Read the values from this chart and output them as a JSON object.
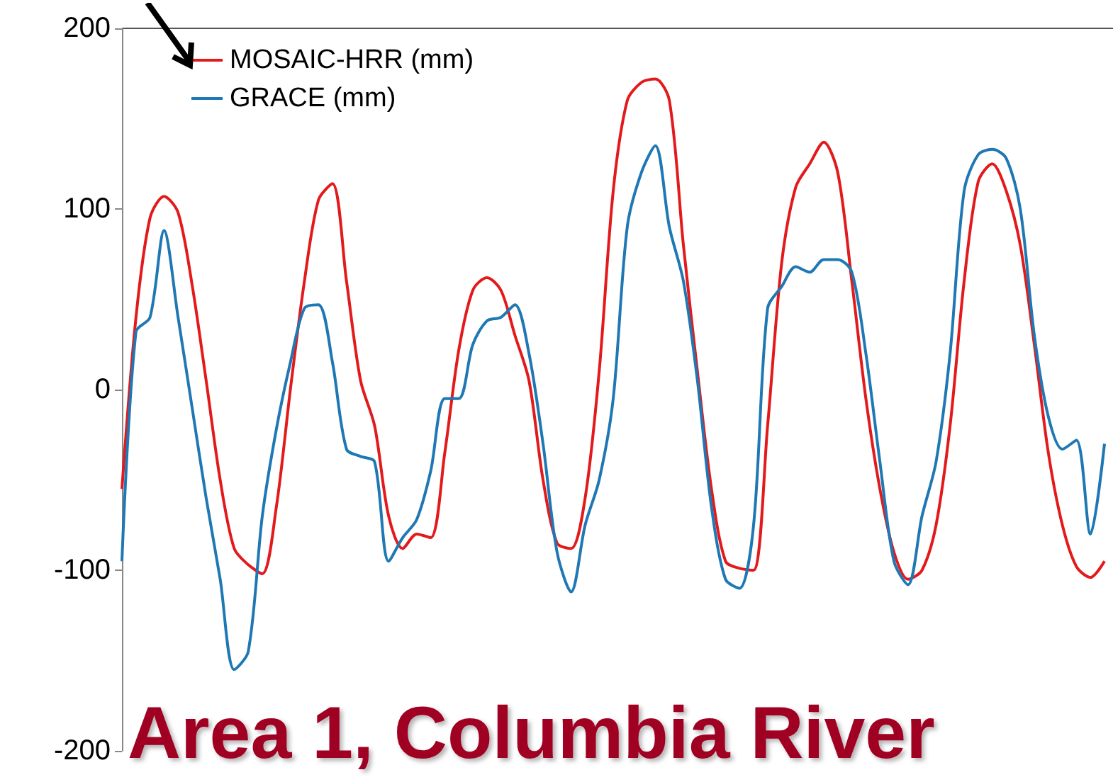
{
  "chart_data": {
    "type": "line",
    "categories": [
      null,
      null,
      null,
      null,
      null,
      null,
      null,
      null,
      null,
      null,
      null,
      null,
      null,
      null,
      null,
      null,
      null,
      null,
      null,
      null,
      null,
      null,
      null,
      null,
      null,
      null,
      null,
      null,
      null,
      null,
      null,
      null,
      null,
      null,
      null,
      null,
      null,
      null,
      null,
      null,
      null,
      null,
      null,
      null,
      null,
      null,
      null,
      null,
      null,
      null,
      null,
      null,
      null,
      null,
      null,
      null,
      null,
      null,
      null,
      null,
      null,
      null,
      null,
      null,
      null,
      null,
      null,
      null,
      null,
      null,
      null
    ],
    "series": [
      {
        "name": "MOSAIC-HRR (mm)",
        "color": "#e31a1c",
        "values": [
          -55,
          40,
          95,
          107,
          98,
          58,
          5,
          -50,
          -88,
          -97,
          -102,
          -65,
          0,
          60,
          105,
          114,
          60,
          5,
          -20,
          -70,
          -88,
          -80,
          -82,
          -35,
          22,
          55,
          62,
          55,
          30,
          5,
          -50,
          -85,
          -88,
          -60,
          10,
          110,
          160,
          170,
          172,
          160,
          80,
          10,
          -55,
          -95,
          -99,
          -100,
          -20,
          70,
          112,
          125,
          137,
          120,
          60,
          -5,
          -55,
          -90,
          -105,
          -100,
          -75,
          -20,
          60,
          115,
          125,
          110,
          80,
          25,
          -35,
          -75,
          -98,
          -104,
          -95
        ]
      },
      {
        "name": "GRACE (mm)",
        "color": "#1f78b4",
        "values": [
          -95,
          32,
          40,
          88,
          40,
          -10,
          -60,
          -105,
          -155,
          -145,
          -70,
          -22,
          15,
          45,
          47,
          15,
          -33,
          -37,
          -40,
          -95,
          -82,
          -72,
          -45,
          -5,
          -5,
          25,
          38,
          40,
          47,
          20,
          -30,
          -90,
          -112,
          -75,
          -50,
          -5,
          90,
          120,
          135,
          90,
          60,
          5,
          -65,
          -105,
          -110,
          -75,
          45,
          57,
          68,
          65,
          72,
          72,
          65,
          20,
          -40,
          -95,
          -108,
          -70,
          -40,
          20,
          110,
          130,
          133,
          128,
          100,
          30,
          -15,
          -33,
          -28,
          -80,
          -30
        ]
      }
    ],
    "ylim": [
      -200,
      200
    ],
    "yticks": [
      -200,
      -100,
      0,
      100,
      200
    ],
    "tick_labels": "y",
    "grid": false,
    "legend": "top left",
    "marker": "none",
    "line_style": "solid",
    "annotations": [
      "Area 1, Columbia River"
    ]
  }
}
